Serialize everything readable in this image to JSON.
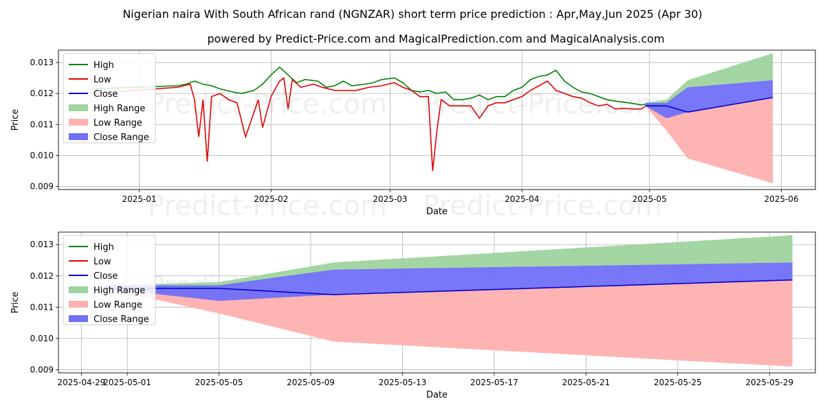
{
  "title": "Nigerian naira With South African rand (NGNZAR) short term price prediction : Apr,May,Jun 2025 (Apr 30)",
  "subtitle": "powered by Predict-Price.com and MagicalPrediction.com and MagicalAnalysis.com",
  "watermark": "Predict-Price.com",
  "colors": {
    "high": "#008000",
    "low": "#e00000",
    "close": "#0000cc",
    "high_range": "#9ed49e",
    "low_range": "#ffb0b0",
    "close_range": "#7070f8"
  },
  "chart_data": [
    {
      "type": "line",
      "xlabel": "Date",
      "ylabel": "Price",
      "ylim": [
        0.0089,
        0.0134
      ],
      "x_ticks": [
        "2025-01",
        "2025-02",
        "2025-03",
        "2025-04",
        "2025-05",
        "2025-06"
      ],
      "y_ticks": [
        "0.009",
        "0.010",
        "0.011",
        "0.012",
        "0.013"
      ],
      "legend": [
        "High",
        "Low",
        "Close",
        "High Range",
        "Low Range",
        "Close Range"
      ],
      "legend_position": "top-left",
      "grid": true,
      "series": [
        {
          "name": "High",
          "points": [
            [
              "2024-12-21",
              0.01215
            ],
            [
              "2025-01-10",
              0.01225
            ],
            [
              "2025-01-12",
              0.0123
            ],
            [
              "2025-01-14",
              0.0124
            ],
            [
              "2025-01-16",
              0.0123
            ],
            [
              "2025-01-18",
              0.01225
            ],
            [
              "2025-01-20",
              0.01215
            ],
            [
              "2025-01-23",
              0.01205
            ],
            [
              "2025-01-25",
              0.012
            ],
            [
              "2025-01-28",
              0.0121
            ],
            [
              "2025-01-30",
              0.0123
            ],
            [
              "2025-02-01",
              0.0126
            ],
            [
              "2025-02-03",
              0.01285
            ],
            [
              "2025-02-05",
              0.0126
            ],
            [
              "2025-02-07",
              0.01235
            ],
            [
              "2025-02-09",
              0.01245
            ],
            [
              "2025-02-12",
              0.0124
            ],
            [
              "2025-02-14",
              0.0122
            ],
            [
              "2025-02-16",
              0.01225
            ],
            [
              "2025-02-18",
              0.0124
            ],
            [
              "2025-02-20",
              0.01225
            ],
            [
              "2025-02-23",
              0.0123
            ],
            [
              "2025-02-25",
              0.01235
            ],
            [
              "2025-02-27",
              0.01245
            ],
            [
              "2025-03-02",
              0.0125
            ],
            [
              "2025-03-04",
              0.01235
            ],
            [
              "2025-03-06",
              0.0121
            ],
            [
              "2025-03-08",
              0.01205
            ],
            [
              "2025-03-10",
              0.0121
            ],
            [
              "2025-03-12",
              0.012
            ],
            [
              "2025-03-14",
              0.01205
            ],
            [
              "2025-03-16",
              0.0118
            ],
            [
              "2025-03-18",
              0.0118
            ],
            [
              "2025-03-20",
              0.01185
            ],
            [
              "2025-03-22",
              0.01195
            ],
            [
              "2025-03-24",
              0.0118
            ],
            [
              "2025-03-26",
              0.0119
            ],
            [
              "2025-03-28",
              0.0119
            ],
            [
              "2025-03-30",
              0.0121
            ],
            [
              "2025-04-01",
              0.0122
            ],
            [
              "2025-04-03",
              0.01245
            ],
            [
              "2025-04-05",
              0.01255
            ],
            [
              "2025-04-07",
              0.0126
            ],
            [
              "2025-04-09",
              0.01275
            ],
            [
              "2025-04-11",
              0.0124
            ],
            [
              "2025-04-13",
              0.0122
            ],
            [
              "2025-04-15",
              0.01205
            ],
            [
              "2025-04-17",
              0.012
            ],
            [
              "2025-04-19",
              0.0119
            ],
            [
              "2025-04-21",
              0.0118
            ],
            [
              "2025-04-23",
              0.01175
            ],
            [
              "2025-04-25",
              0.01172
            ],
            [
              "2025-04-27",
              0.01168
            ],
            [
              "2025-04-29",
              0.01163
            ],
            [
              "2025-04-30",
              0.01165
            ]
          ]
        },
        {
          "name": "Low",
          "points": [
            [
              "2024-12-21",
              0.012
            ],
            [
              "2025-01-10",
              0.0122
            ],
            [
              "2025-01-13",
              0.0123
            ],
            [
              "2025-01-14",
              0.0118
            ],
            [
              "2025-01-15",
              0.0106
            ],
            [
              "2025-01-16",
              0.0118
            ],
            [
              "2025-01-17",
              0.0098
            ],
            [
              "2025-01-18",
              0.0119
            ],
            [
              "2025-01-20",
              0.012
            ],
            [
              "2025-01-22",
              0.0118
            ],
            [
              "2025-01-24",
              0.0117
            ],
            [
              "2025-01-26",
              0.0106
            ],
            [
              "2025-01-29",
              0.0118
            ],
            [
              "2025-01-30",
              0.0109
            ],
            [
              "2025-02-01",
              0.0119
            ],
            [
              "2025-02-03",
              0.0124
            ],
            [
              "2025-02-04",
              0.0125
            ],
            [
              "2025-02-05",
              0.0115
            ],
            [
              "2025-02-06",
              0.01245
            ],
            [
              "2025-02-08",
              0.0122
            ],
            [
              "2025-02-11",
              0.0123
            ],
            [
              "2025-02-13",
              0.0122
            ],
            [
              "2025-02-16",
              0.0121
            ],
            [
              "2025-02-18",
              0.0121
            ],
            [
              "2025-02-21",
              0.0121
            ],
            [
              "2025-02-24",
              0.0122
            ],
            [
              "2025-02-27",
              0.01225
            ],
            [
              "2025-03-02",
              0.01235
            ],
            [
              "2025-03-04",
              0.0122
            ],
            [
              "2025-03-06",
              0.0121
            ],
            [
              "2025-03-08",
              0.0119
            ],
            [
              "2025-03-10",
              0.0119
            ],
            [
              "2025-03-11",
              0.0095
            ],
            [
              "2025-03-12",
              0.0108
            ],
            [
              "2025-03-13",
              0.0118
            ],
            [
              "2025-03-15",
              0.0116
            ],
            [
              "2025-03-18",
              0.0116
            ],
            [
              "2025-03-20",
              0.0116
            ],
            [
              "2025-03-22",
              0.0112
            ],
            [
              "2025-03-24",
              0.0116
            ],
            [
              "2025-03-26",
              0.0117
            ],
            [
              "2025-03-28",
              0.0117
            ],
            [
              "2025-03-30",
              0.0118
            ],
            [
              "2025-04-01",
              0.0119
            ],
            [
              "2025-04-03",
              0.0121
            ],
            [
              "2025-04-05",
              0.01225
            ],
            [
              "2025-04-07",
              0.0124
            ],
            [
              "2025-04-09",
              0.0121
            ],
            [
              "2025-04-11",
              0.012
            ],
            [
              "2025-04-13",
              0.0119
            ],
            [
              "2025-04-15",
              0.01185
            ],
            [
              "2025-04-17",
              0.0117
            ],
            [
              "2025-04-19",
              0.0116
            ],
            [
              "2025-04-21",
              0.01165
            ],
            [
              "2025-04-23",
              0.0115
            ],
            [
              "2025-04-25",
              0.01152
            ],
            [
              "2025-04-27",
              0.0115
            ],
            [
              "2025-04-29",
              0.0115
            ],
            [
              "2025-04-30",
              0.01158
            ]
          ]
        },
        {
          "name": "Close",
          "points": [
            [
              "2025-04-30",
              0.0116
            ],
            [
              "2025-05-05",
              0.0116
            ],
            [
              "2025-05-10",
              0.0114
            ],
            [
              "2025-05-30",
              0.01187
            ]
          ]
        },
        {
          "name": "High Range",
          "upper": [
            [
              "2025-04-30",
              0.0117
            ],
            [
              "2025-05-05",
              0.0118
            ],
            [
              "2025-05-10",
              0.01243
            ],
            [
              "2025-05-30",
              0.0133
            ]
          ],
          "lower": [
            [
              "2025-04-30",
              0.0116
            ],
            [
              "2025-05-05",
              0.0116
            ],
            [
              "2025-05-10",
              0.0122
            ],
            [
              "2025-05-30",
              0.01243
            ]
          ]
        },
        {
          "name": "Low Range",
          "upper": [
            [
              "2025-04-30",
              0.0116
            ],
            [
              "2025-05-05",
              0.0116
            ],
            [
              "2025-05-10",
              0.0114
            ],
            [
              "2025-05-30",
              0.01187
            ]
          ],
          "lower": [
            [
              "2025-04-30",
              0.0116
            ],
            [
              "2025-05-05",
              0.0108
            ],
            [
              "2025-05-10",
              0.0099
            ],
            [
              "2025-05-30",
              0.0091
            ]
          ]
        },
        {
          "name": "Close Range",
          "upper": [
            [
              "2025-04-30",
              0.0117
            ],
            [
              "2025-05-05",
              0.0117
            ],
            [
              "2025-05-10",
              0.0122
            ],
            [
              "2025-05-30",
              0.01243
            ]
          ],
          "lower": [
            [
              "2025-04-30",
              0.0116
            ],
            [
              "2025-05-05",
              0.0112
            ],
            [
              "2025-05-10",
              0.0114
            ],
            [
              "2025-05-30",
              0.01187
            ]
          ]
        }
      ]
    },
    {
      "type": "line",
      "xlabel": "Date",
      "ylabel": "Price",
      "ylim": [
        0.0089,
        0.0134
      ],
      "x_ticks": [
        "2025-04-29",
        "2025-05-01",
        "2025-05-05",
        "2025-05-09",
        "2025-05-13",
        "2025-05-17",
        "2025-05-21",
        "2025-05-25",
        "2025-05-29"
      ],
      "y_ticks": [
        "0.009",
        "0.010",
        "0.011",
        "0.012",
        "0.013"
      ],
      "legend": [
        "High",
        "Low",
        "Close",
        "High Range",
        "Low Range",
        "Close Range"
      ],
      "legend_position": "top-left",
      "grid": true,
      "series": [
        {
          "name": "Close",
          "points": [
            [
              "2025-04-30",
              0.0116
            ],
            [
              "2025-05-05",
              0.0116
            ],
            [
              "2025-05-10",
              0.0114
            ],
            [
              "2025-05-30",
              0.01187
            ]
          ]
        },
        {
          "name": "High Range",
          "upper": [
            [
              "2025-04-30",
              0.0117
            ],
            [
              "2025-05-05",
              0.0118
            ],
            [
              "2025-05-10",
              0.01243
            ],
            [
              "2025-05-30",
              0.0133
            ]
          ],
          "lower": [
            [
              "2025-04-30",
              0.0116
            ],
            [
              "2025-05-05",
              0.0116
            ],
            [
              "2025-05-10",
              0.0122
            ],
            [
              "2025-05-30",
              0.01243
            ]
          ]
        },
        {
          "name": "Low Range",
          "upper": [
            [
              "2025-04-30",
              0.0116
            ],
            [
              "2025-05-05",
              0.0116
            ],
            [
              "2025-05-10",
              0.0114
            ],
            [
              "2025-05-30",
              0.01187
            ]
          ],
          "lower": [
            [
              "2025-04-30",
              0.0116
            ],
            [
              "2025-05-05",
              0.0108
            ],
            [
              "2025-05-10",
              0.0099
            ],
            [
              "2025-05-30",
              0.0091
            ]
          ]
        },
        {
          "name": "Close Range",
          "upper": [
            [
              "2025-04-30",
              0.0117
            ],
            [
              "2025-05-05",
              0.0117
            ],
            [
              "2025-05-10",
              0.0122
            ],
            [
              "2025-05-30",
              0.01243
            ]
          ],
          "lower": [
            [
              "2025-04-30",
              0.0116
            ],
            [
              "2025-05-05",
              0.0112
            ],
            [
              "2025-05-10",
              0.0114
            ],
            [
              "2025-05-30",
              0.01187
            ]
          ]
        }
      ]
    }
  ]
}
